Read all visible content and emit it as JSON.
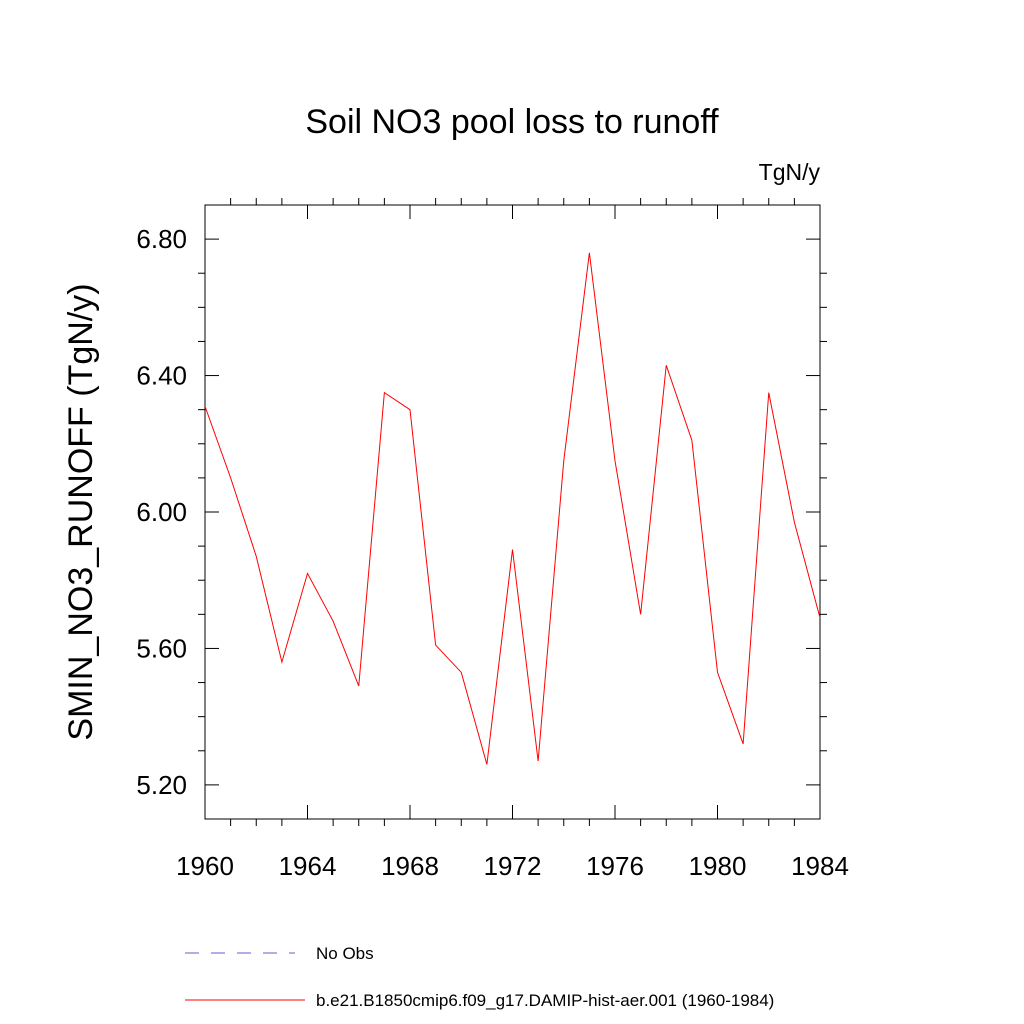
{
  "chart_data": {
    "type": "line",
    "title": "Soil NO3 pool loss to runoff",
    "units": "TgN/y",
    "ylabel": "SMIN_NO3_RUNOFF  (TgN/y)",
    "xlabel": "",
    "xlim": [
      1960,
      1984
    ],
    "ylim": [
      5.1,
      6.9
    ],
    "x_ticks": [
      "1960",
      "1964",
      "1968",
      "1972",
      "1976",
      "1980",
      "1984"
    ],
    "y_ticks": [
      "5.20",
      "5.60",
      "6.00",
      "6.40",
      "6.80"
    ],
    "grid": false,
    "legend_position": "bottom",
    "series": [
      {
        "name": "b.e21.B1850cmip6.f09_g17.DAMIP-hist-aer.001 (1960-1984)",
        "color": "#ff0000",
        "style": "solid",
        "x": [
          1960,
          1961,
          1962,
          1963,
          1964,
          1965,
          1966,
          1967,
          1968,
          1969,
          1970,
          1971,
          1972,
          1973,
          1974,
          1975,
          1976,
          1977,
          1978,
          1979,
          1980,
          1981,
          1982,
          1983,
          1984
        ],
        "y": [
          6.31,
          6.1,
          5.87,
          5.56,
          5.82,
          5.68,
          5.49,
          6.35,
          6.3,
          5.61,
          5.53,
          5.26,
          5.89,
          5.27,
          6.15,
          6.76,
          6.15,
          5.7,
          6.43,
          6.21,
          5.53,
          5.32,
          6.35,
          5.97,
          5.69
        ]
      }
    ],
    "legend": [
      {
        "label": "No Obs",
        "color": "#6a5acd",
        "style": "dashed"
      },
      {
        "label": "b.e21.B1850cmip6.f09_g17.DAMIP-hist-aer.001 (1960-1984)",
        "color": "#ff0000",
        "style": "solid"
      }
    ]
  }
}
